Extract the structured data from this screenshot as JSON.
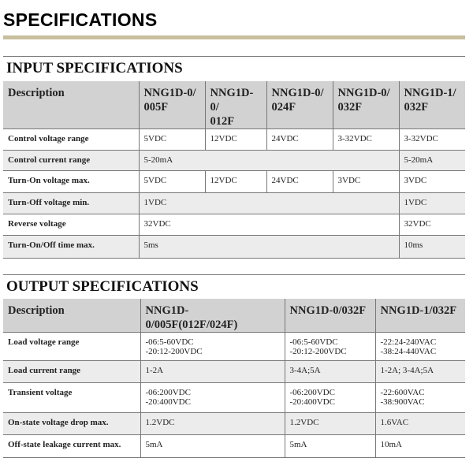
{
  "title": "SPECIFICATIONS",
  "input": {
    "title": "INPUT SPECIFICATIONS",
    "headers": [
      "Description",
      "NNG1D-0/\n005F",
      "NNG1D-0/\n012F",
      "NNG1D-0/\n024F",
      "NNG1D-0/\n032F",
      "NNG1D-1/\n032F"
    ],
    "rows": [
      {
        "label": "Control voltage range",
        "cells": [
          "5VDC",
          "12VDC",
          "24VDC",
          "3-32VDC",
          "3-32VDC"
        ]
      },
      {
        "label": "Control current range",
        "cells": [
          "5-20mA",
          "5-20mA"
        ]
      },
      {
        "label": "Turn-On voltage max.",
        "cells": [
          "5VDC",
          "12VDC",
          "24VDC",
          "3VDC",
          "3VDC"
        ]
      },
      {
        "label": "Turn-Off voltage min.",
        "cells": [
          "1VDC",
          "1VDC"
        ]
      },
      {
        "label": "Reverse voltage",
        "cells": [
          "32VDC",
          "32VDC"
        ]
      },
      {
        "label": "Turn-On/Off time max.",
        "cells": [
          "5ms",
          "10ms"
        ]
      }
    ]
  },
  "output": {
    "title": "OUTPUT SPECIFICATIONS",
    "headers": [
      "Description",
      "NNG1D-0/005F(012F/024F)",
      "NNG1D-0/032F",
      "NNG1D-1/032F"
    ],
    "rows": [
      {
        "label": "Load voltage range",
        "cells": [
          "-06:5-60VDC\n-20:12-200VDC",
          "-06:5-60VDC\n-20:12-200VDC",
          "-22:24-240VAC\n-38:24-440VAC"
        ]
      },
      {
        "label": "Load current range",
        "cells": [
          "1-2A",
          "3-4A;5A",
          "1-2A; 3-4A;5A"
        ]
      },
      {
        "label": "Transient voltage",
        "cells": [
          "-06:200VDC\n-20:400VDC",
          "-06:200VDC\n-20:400VDC",
          "-22:600VAC\n-38:900VAC"
        ]
      },
      {
        "label": "On-state voltage drop max.",
        "cells": [
          "1.2VDC",
          "1.2VDC",
          "1.6VAC"
        ]
      },
      {
        "label": "Off-state leakage current max.",
        "cells": [
          "5mA",
          "5mA",
          "10mA"
        ]
      }
    ]
  }
}
